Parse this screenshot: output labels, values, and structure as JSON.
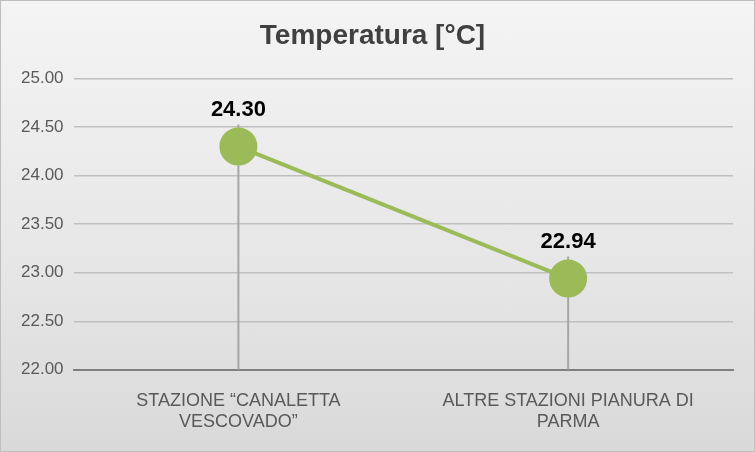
{
  "chart_data": {
    "type": "line",
    "title": "Temperatura [°C]",
    "categories": [
      "STAZIONE “CANALETTA VESCOVADO”",
      "ALTRE STAZIONI PIANURA DI PARMA"
    ],
    "values": [
      24.3,
      22.94
    ],
    "value_labels": [
      "24.30",
      "22.94"
    ],
    "color": "#9bbb59",
    "marker": "circle",
    "ylim": [
      22,
      25
    ],
    "yticks": [
      {
        "value": 22,
        "label": "22.00"
      },
      {
        "value": 22.5,
        "label": "22.50"
      },
      {
        "value": 23,
        "label": "23.00"
      },
      {
        "value": 23.5,
        "label": "23.50"
      },
      {
        "value": 24,
        "label": "24.00"
      },
      {
        "value": 24.5,
        "label": "24.50"
      },
      {
        "value": 25,
        "label": "25.00"
      }
    ],
    "grid": true,
    "data_labels": true
  }
}
